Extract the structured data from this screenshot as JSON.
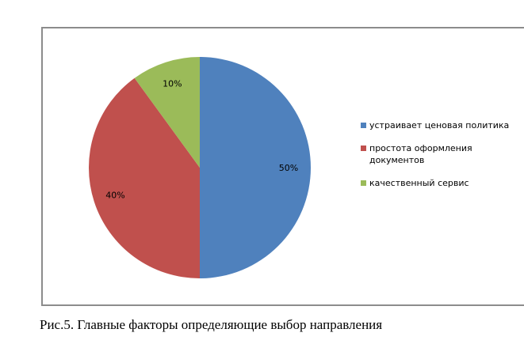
{
  "chart_data": {
    "type": "pie",
    "categories": [
      "устраивает ценовая политика",
      "простота оформления документов",
      "качественный сервис"
    ],
    "values": [
      50,
      40,
      10
    ],
    "data_labels": [
      "50%",
      "40%",
      "10%"
    ],
    "colors": [
      "#4f81bd",
      "#c0504d",
      "#9bbb59"
    ],
    "legend": "right"
  },
  "caption": "Рис.5. Главные факторы определяющие выбор направления"
}
